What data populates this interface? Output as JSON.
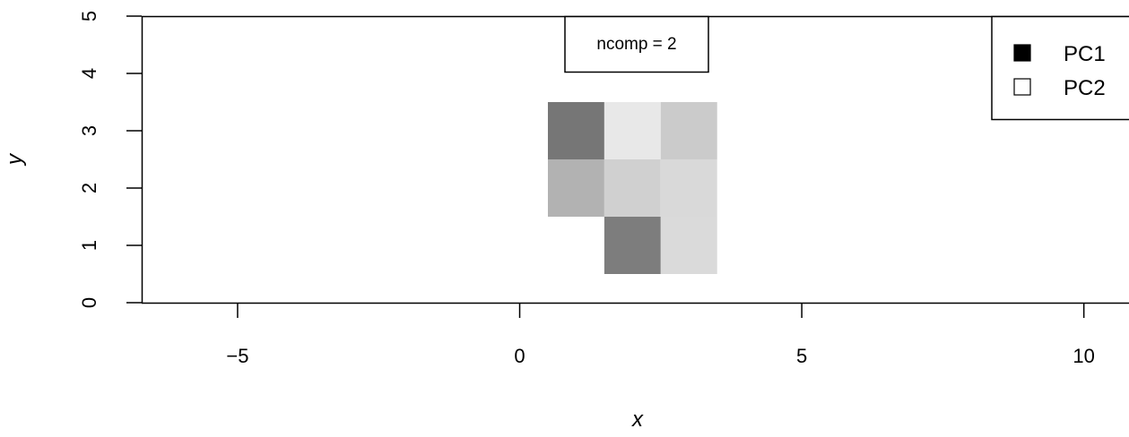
{
  "chart_data": {
    "type": "heatmap",
    "xlabel": "x",
    "ylabel": "y",
    "xlim": [
      -6.7,
      10.8
    ],
    "ylim": [
      0,
      5
    ],
    "x_ticks": [
      "−5",
      "0",
      "5",
      "10"
    ],
    "x_tick_values": [
      -5,
      0,
      5,
      10
    ],
    "y_ticks": [
      "0",
      "1",
      "2",
      "3",
      "4",
      "5"
    ],
    "y_tick_values": [
      0,
      1,
      2,
      3,
      4,
      5
    ],
    "cell_size": 1,
    "cells": [
      {
        "x": 1,
        "y": 3,
        "color": "#767676"
      },
      {
        "x": 2,
        "y": 3,
        "color": "#e8e8e8"
      },
      {
        "x": 3,
        "y": 3,
        "color": "#cbcbcb"
      },
      {
        "x": 1,
        "y": 2,
        "color": "#b2b2b2"
      },
      {
        "x": 2,
        "y": 2,
        "color": "#d0d0d0"
      },
      {
        "x": 3,
        "y": 2,
        "color": "#d9d9d9"
      },
      {
        "x": 2,
        "y": 1,
        "color": "#7d7d7d"
      },
      {
        "x": 3,
        "y": 1,
        "color": "#dadada"
      }
    ],
    "annotation": {
      "text": "ncomp = 2",
      "x": 2,
      "y": 4.5
    },
    "legend": {
      "placement": "top-right",
      "entries": [
        {
          "label": "PC1",
          "fill": "#000000"
        },
        {
          "label": "PC2",
          "fill": "#ffffff"
        }
      ]
    }
  }
}
